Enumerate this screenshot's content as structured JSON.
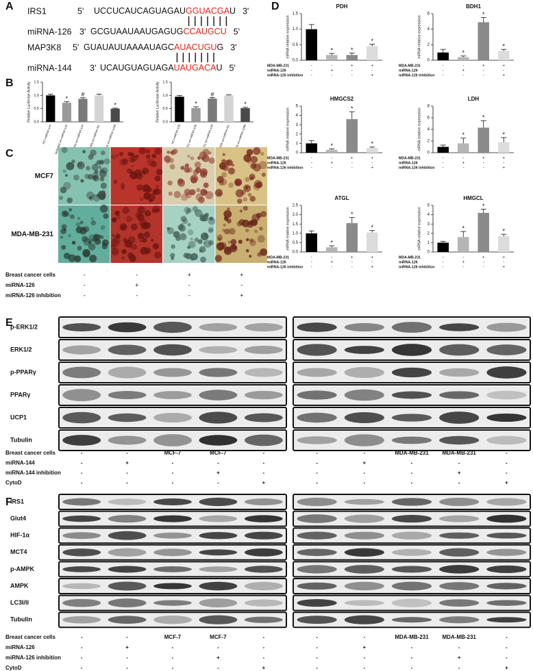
{
  "panel_labels": [
    "A",
    "B",
    "C",
    "D",
    "E",
    "F"
  ],
  "sequences": [
    {
      "name": "IRS1",
      "left_end": "5'",
      "segments": [
        {
          "text": "UCCUCAUCAGUAGAU",
          "color": "#111111"
        },
        {
          "text": "GGUACGA",
          "color": "#e3231b"
        },
        {
          "text": "U",
          "color": "#111111"
        }
      ],
      "right_end": "3'"
    },
    {
      "name": "miRNA-126",
      "left_end": "3'",
      "segments": [
        {
          "text": "GCGUAAUAAUGAGUG",
          "color": "#111111"
        },
        {
          "text": "CCAUGCU",
          "color": "#e3231b"
        }
      ],
      "right_end": "5'"
    },
    {
      "name": "MAP3K8",
      "left_end": "5'",
      "segments": [
        {
          "text": "GUAUAUUAAAAUAGC",
          "color": "#111111"
        },
        {
          "text": "AUACUGU",
          "color": "#e3231b"
        },
        {
          "text": "G",
          "color": "#111111"
        }
      ],
      "right_end": "3'"
    },
    {
      "name": "miRNA-144",
      "left_end": "3'",
      "segments": [
        {
          "text": "UCAUGUAGUAGA",
          "color": "#111111"
        },
        {
          "text": "UAUGACA",
          "color": "#e3231b"
        },
        {
          "text": "U",
          "color": "#111111"
        }
      ],
      "right_end": "5'"
    }
  ],
  "chart_data": [
    {
      "type": "bar",
      "y_label": "Relative Luciferase Activity",
      "categories": [
        "NC+miRNA-144",
        "MAP3K8 wt+miRNA-144",
        "MAP3K8 mt+miRNA-144",
        "TRAF6 wt+miRNA-NC",
        "TRAF6 wt+miRNA-144b"
      ],
      "values": [
        1.0,
        0.72,
        0.87,
        1.0,
        0.5
      ],
      "errors": [
        0.05,
        0.04,
        0.04,
        0.05,
        0.02
      ],
      "annotations": [
        null,
        "*",
        "#",
        null,
        "*"
      ],
      "colors": [
        "#000000",
        "#9a9a9a",
        "#7a7a7a",
        "#d4d4d4",
        "#4a4a4a"
      ],
      "ylim": [
        0,
        1.5
      ],
      "yticks": [
        {
          "value": 0,
          "label": "0.0"
        },
        0.5,
        {
          "value": 1,
          "label": "1.0"
        },
        1.5
      ]
    },
    {
      "type": "bar",
      "y_label": "Relative Luciferase Activity",
      "categories": [
        "NC+miRNA-126",
        "IRS1 wt+miRNA-126",
        "IRS1 mt+miRNA-126",
        "TRAF6 wt+miRNA-NC",
        "TRAF6 wt+miRNA-126b"
      ],
      "values": [
        0.95,
        0.52,
        0.88,
        1.0,
        0.52
      ],
      "errors": [
        0.05,
        0.05,
        0.04,
        0.02,
        0.03
      ],
      "annotations": [
        null,
        "*",
        "#",
        null,
        "*"
      ],
      "colors": [
        "#000000",
        "#9a9a9a",
        "#7a7a7a",
        "#d4d4d4",
        "#4a4a4a"
      ],
      "ylim": [
        0,
        1.5
      ],
      "yticks": [
        {
          "value": 0,
          "label": "0.0"
        },
        0.5,
        {
          "value": 1,
          "label": "1.0"
        },
        1.5
      ]
    },
    {
      "type": "bar",
      "title": "PDH",
      "y_label": "mRNA relative expression",
      "values": [
        1.0,
        0.17,
        0.17,
        0.45
      ],
      "errors": [
        0.15,
        0.05,
        0.06,
        0.07
      ],
      "annotations": [
        null,
        "*",
        "*",
        "*"
      ],
      "colors": [
        "#000000",
        "#b5b5b5",
        "#8a8a8a",
        "#dcdcdc"
      ],
      "ylim": [
        0,
        1.5
      ],
      "yticks": [
        {
          "value": 0,
          "label": "0.0"
        },
        0.5,
        {
          "value": 1,
          "label": "1.0"
        },
        1.5
      ],
      "conditions": [
        {
          "name": "MDA-MB-231",
          "marks": [
            "-",
            "-",
            "+",
            "+"
          ]
        },
        {
          "name": "miRNA-126",
          "marks": [
            "-",
            "+",
            "-",
            "-"
          ]
        },
        {
          "name": "miRNA-126 inhibition",
          "marks": [
            "-",
            "-",
            "-",
            "+"
          ]
        }
      ]
    },
    {
      "type": "bar",
      "title": "BDH1",
      "y_label": "mRNA relative expression",
      "values": [
        1.0,
        0.4,
        4.9,
        1.2
      ],
      "errors": [
        0.4,
        0.15,
        0.6,
        0.2
      ],
      "annotations": [
        null,
        "*",
        "*",
        "*"
      ],
      "colors": [
        "#000000",
        "#b5b5b5",
        "#8a8a8a",
        "#dcdcdc"
      ],
      "ylim": [
        0,
        6
      ],
      "yticks": [
        0,
        2,
        4,
        6
      ],
      "conditions": [
        {
          "name": "MDA-MB-231",
          "marks": [
            "-",
            "-",
            "+",
            "+"
          ]
        },
        {
          "name": "miRNA-126",
          "marks": [
            "-",
            "+",
            "-",
            "-"
          ]
        },
        {
          "name": "miRNA-126 inhibition",
          "marks": [
            "-",
            "-",
            "-",
            "+"
          ]
        }
      ]
    },
    {
      "type": "bar",
      "title": "HMGCS2",
      "y_label": "mRNA relative expression",
      "values": [
        1.0,
        0.3,
        3.6,
        0.5
      ],
      "errors": [
        0.3,
        0.1,
        0.8,
        0.1
      ],
      "annotations": [
        null,
        "*",
        "*",
        "*"
      ],
      "colors": [
        "#000000",
        "#b5b5b5",
        "#8a8a8a",
        "#dcdcdc"
      ],
      "ylim": [
        0,
        5
      ],
      "yticks": [
        0,
        1,
        2,
        3,
        4,
        5
      ],
      "conditions": [
        {
          "name": "MDA-MB-231",
          "marks": [
            "-",
            "-",
            "+",
            "+"
          ]
        },
        {
          "name": "miRNA-126",
          "marks": [
            "-",
            "+",
            "-",
            "-"
          ]
        },
        {
          "name": "miRNA-126 inhibition",
          "marks": [
            "-",
            "-",
            "-",
            "+"
          ]
        }
      ]
    },
    {
      "type": "bar",
      "title": "LDH",
      "y_label": "mRNA relative expression",
      "values": [
        1.0,
        1.6,
        4.3,
        1.8
      ],
      "errors": [
        0.3,
        0.9,
        1.2,
        0.8
      ],
      "annotations": [
        null,
        "*",
        "*",
        "*"
      ],
      "colors": [
        "#000000",
        "#b5b5b5",
        "#8a8a8a",
        "#dcdcdc"
      ],
      "ylim": [
        0,
        8
      ],
      "yticks": [
        0,
        2,
        4,
        6,
        8
      ],
      "conditions": [
        {
          "name": "MDA-MB-231",
          "marks": [
            "-",
            "-",
            "+",
            "+"
          ]
        },
        {
          "name": "miRNA-126",
          "marks": [
            "-",
            "+",
            "-",
            "-"
          ]
        },
        {
          "name": "miRNA-126 inhibition",
          "marks": [
            "-",
            "-",
            "-",
            "+"
          ]
        }
      ]
    },
    {
      "type": "bar",
      "title": "ATGL",
      "y_label": "mRNA relative expression",
      "values": [
        1.0,
        0.25,
        1.55,
        1.05
      ],
      "errors": [
        0.13,
        0.08,
        0.3,
        0.1
      ],
      "annotations": [
        null,
        "*",
        "*",
        "*"
      ],
      "colors": [
        "#000000",
        "#b5b5b5",
        "#8a8a8a",
        "#dcdcdc"
      ],
      "ylim": [
        0,
        2.5
      ],
      "yticks": [
        {
          "value": 0,
          "label": "0.0"
        },
        0.5,
        {
          "value": 1,
          "label": "1.0"
        },
        1.5,
        {
          "value": 2,
          "label": "2.0"
        },
        2.5
      ],
      "conditions": [
        {
          "name": "MDA-MB-231",
          "marks": [
            "-",
            "-",
            "+",
            "+"
          ]
        },
        {
          "name": "miRNA-126",
          "marks": [
            "-",
            "+",
            "-",
            "-"
          ]
        },
        {
          "name": "miRNA-126 inhibition",
          "marks": [
            "-",
            "-",
            "-",
            "+"
          ]
        }
      ]
    },
    {
      "type": "bar",
      "title": "HMGCL",
      "y_label": "mRNA relative expression",
      "values": [
        1.0,
        1.6,
        4.2,
        1.7
      ],
      "errors": [
        0.15,
        0.6,
        0.4,
        0.2
      ],
      "annotations": [
        null,
        "*",
        "*",
        "*"
      ],
      "colors": [
        "#000000",
        "#b5b5b5",
        "#8a8a8a",
        "#dcdcdc"
      ],
      "ylim": [
        0,
        5
      ],
      "yticks": [
        0,
        1,
        2,
        3,
        4,
        5
      ],
      "conditions": [
        {
          "name": "MDA-MB-231",
          "marks": [
            "-",
            "-",
            "+",
            "+"
          ]
        },
        {
          "name": "miRNA-126",
          "marks": [
            "-",
            "+",
            "-",
            "-"
          ]
        },
        {
          "name": "miRNA-126 inhibition",
          "marks": [
            "-",
            "-",
            "-",
            "+"
          ]
        }
      ]
    }
  ],
  "microscopy": {
    "rows": [
      "MCF7",
      "MDA-MB-231"
    ],
    "conditions": [
      {
        "name": "Breast cancer cells",
        "marks": [
          "-",
          "-",
          "+",
          "+"
        ]
      },
      {
        "name": "miRNA-126",
        "marks": [
          "-",
          "+",
          "-",
          "-"
        ]
      },
      {
        "name": "miRNA-126 inhibition",
        "marks": [
          "-",
          "-",
          "-",
          "+"
        ]
      }
    ]
  },
  "blots": [
    {
      "rows": [
        "p-ERK1/2",
        "ERK1/2",
        "p-PPARγ",
        "PPARγ",
        "UCP1",
        "Tubulin"
      ],
      "conditions": [
        {
          "name": "Breast cancer cells",
          "marks": [
            "-",
            "-",
            "MCF-7",
            "MCF-7",
            "-",
            "-",
            "-",
            "MDA-MB-231",
            "MDA-MB-231",
            "-"
          ]
        },
        {
          "name": "miRNA-144",
          "marks": [
            "-",
            "+",
            "-",
            "-",
            "-",
            "-",
            "+",
            "-",
            "-",
            "-"
          ]
        },
        {
          "name": "miRNA-144 inhibition",
          "marks": [
            "-",
            "-",
            "-",
            "+",
            "-",
            "-",
            "-",
            "-",
            "+",
            "-"
          ]
        },
        {
          "name": "CytoD",
          "marks": [
            "-",
            "-",
            "-",
            "-",
            "+",
            "-",
            "-",
            "-",
            "-",
            "+"
          ]
        }
      ]
    },
    {
      "rows": [
        "IRS1",
        "Glut4",
        "HIF-1α",
        "MCT4",
        "p-AMPK",
        "AMPK",
        "LC3I/II",
        "Tubulin"
      ],
      "conditions": [
        {
          "name": "Breast cancer cells",
          "marks": [
            "-",
            "-",
            "MCF-7",
            "MCF-7",
            "-",
            "-",
            "-",
            "MDA-MB-231",
            "MDA-MB-231",
            "-"
          ]
        },
        {
          "name": "miRNA-126",
          "marks": [
            "-",
            "+",
            "-",
            "-",
            "-",
            "-",
            "+",
            "-",
            "-",
            "-"
          ]
        },
        {
          "name": "miRNA-126 inhibition",
          "marks": [
            "-",
            "-",
            "-",
            "+",
            "-",
            "-",
            "-",
            "-",
            "+",
            "-"
          ]
        },
        {
          "name": "CytoD",
          "marks": [
            "-",
            "-",
            "-",
            "-",
            "+",
            "-",
            "-",
            "-",
            "-",
            "+"
          ]
        }
      ]
    }
  ]
}
